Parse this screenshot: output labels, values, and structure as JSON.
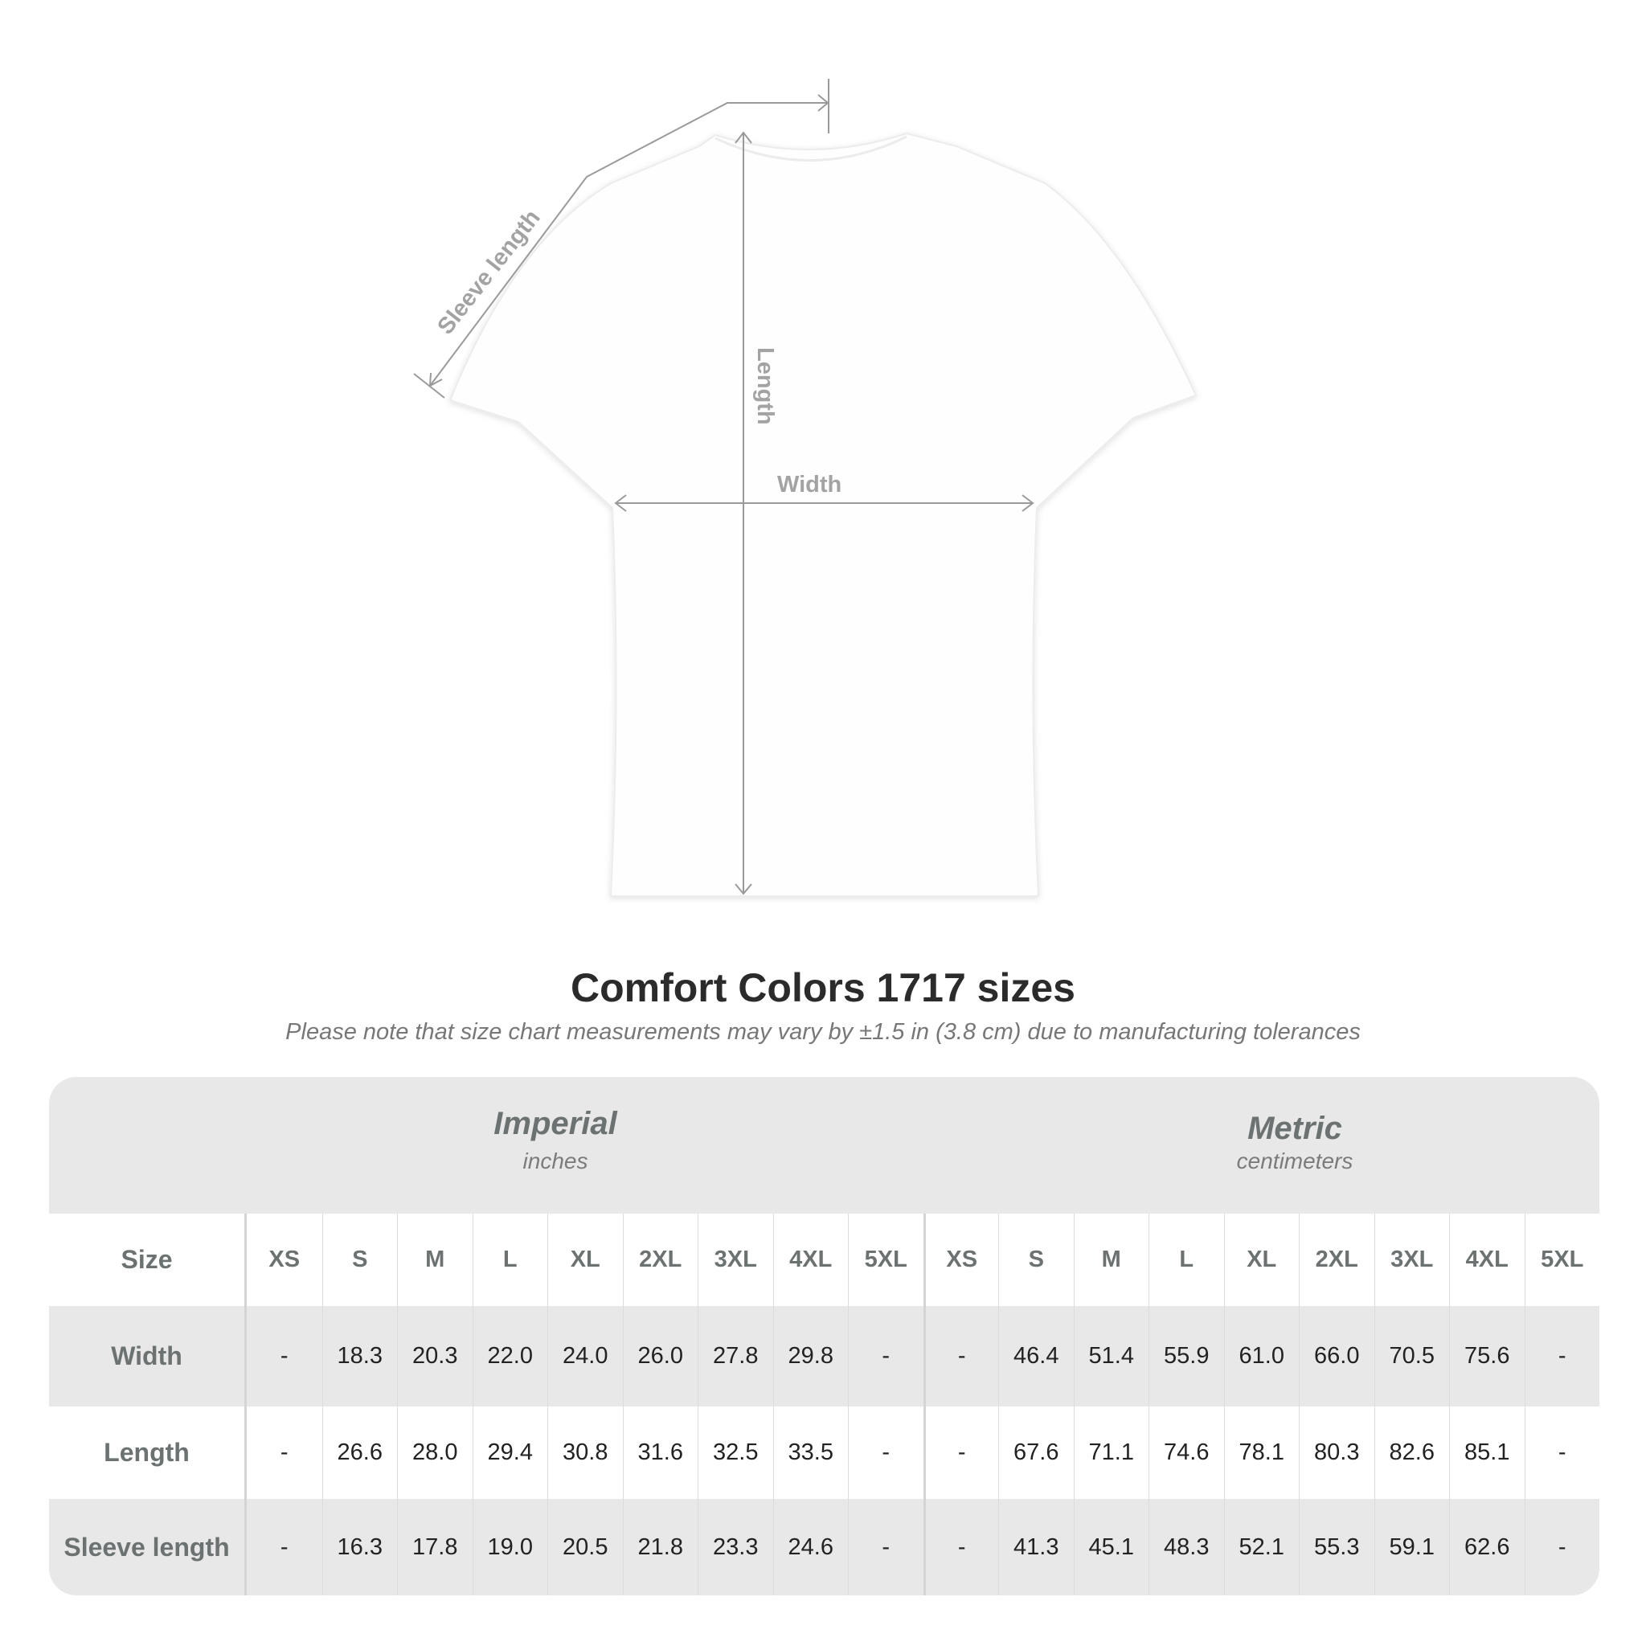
{
  "diagram": {
    "labels": {
      "sleeve": "Sleeve length",
      "length": "Length",
      "width": "Width"
    },
    "colors": {
      "shirt": "#ffffff",
      "measure_line": "#9a9a9a",
      "table_band": "#e8e8e8"
    }
  },
  "title": "Comfort Colors 1717 sizes",
  "subtitle": "Please note that size chart measurements may vary by ±1.5 in (3.8 cm) due to manufacturing tolerances",
  "table": {
    "imperial": {
      "name": "Imperial",
      "unit": "inches"
    },
    "metric": {
      "name": "Metric",
      "unit": "centimeters"
    },
    "size_label": "Size",
    "sizes": [
      "XS",
      "S",
      "M",
      "L",
      "XL",
      "2XL",
      "3XL",
      "4XL",
      "5XL"
    ],
    "rows": [
      {
        "label": "Width",
        "imperial": [
          "-",
          "18.3",
          "20.3",
          "22.0",
          "24.0",
          "26.0",
          "27.8",
          "29.8",
          "-"
        ],
        "metric": [
          "-",
          "46.4",
          "51.4",
          "55.9",
          "61.0",
          "66.0",
          "70.5",
          "75.6",
          "-"
        ]
      },
      {
        "label": "Length",
        "imperial": [
          "-",
          "26.6",
          "28.0",
          "29.4",
          "30.8",
          "31.6",
          "32.5",
          "33.5",
          "-"
        ],
        "metric": [
          "-",
          "67.6",
          "71.1",
          "74.6",
          "78.1",
          "80.3",
          "82.6",
          "85.1",
          "-"
        ]
      },
      {
        "label": "Sleeve length",
        "imperial": [
          "-",
          "16.3",
          "17.8",
          "19.0",
          "20.5",
          "21.8",
          "23.3",
          "24.6",
          "-"
        ],
        "metric": [
          "-",
          "41.3",
          "45.1",
          "48.3",
          "52.1",
          "55.3",
          "59.1",
          "62.6",
          "-"
        ]
      }
    ]
  }
}
